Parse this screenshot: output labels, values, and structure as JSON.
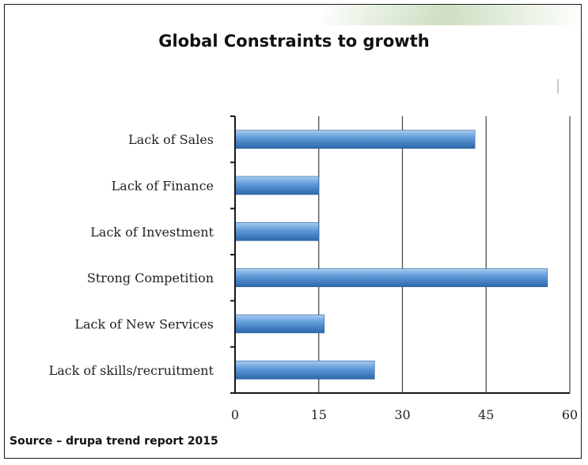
{
  "chart_data": {
    "type": "bar",
    "orientation": "horizontal",
    "title": "Global Constraints to growth",
    "categories": [
      "Lack of Sales",
      "Lack of Finance",
      "Lack of Investment",
      "Strong Competition",
      "Lack of New Services",
      "Lack of skills/recruitment"
    ],
    "values": [
      43,
      15,
      15,
      56,
      16,
      25
    ],
    "xlim": [
      0,
      60
    ],
    "xticks": [
      "0",
      "15",
      "30",
      "45",
      "60"
    ],
    "grid": "vertical",
    "bar_color": "#4a86c9",
    "xlabel": "",
    "ylabel": ""
  },
  "source_note": "Source – drupa trend report 2015"
}
